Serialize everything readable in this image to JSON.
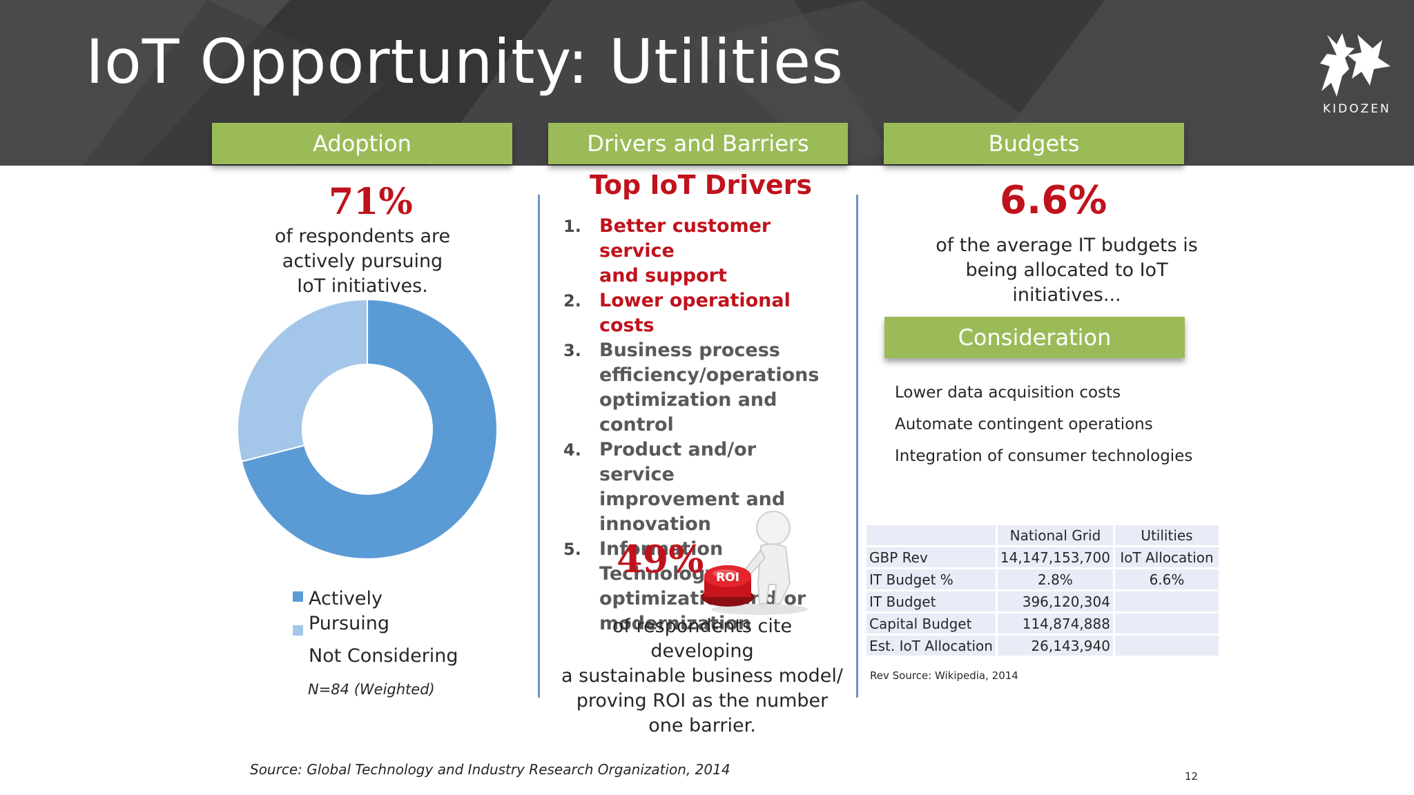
{
  "header": {
    "title": "IoT Opportunity: Utilities",
    "logo_text": "KIDOZEN"
  },
  "sections": {
    "adoption": "Adoption",
    "drivers": "Drivers and Barriers",
    "budgets": "Budgets",
    "consideration": "Consideration"
  },
  "adoption": {
    "percent": "71%",
    "desc_line1": "of respondents are",
    "desc_line2": "actively pursuing",
    "desc_line3": "IoT initiatives.",
    "legend": [
      {
        "label_line1": "Actively",
        "label_line2": "Pursuing",
        "color": "#5b9bd5"
      },
      {
        "label": "Not Considering",
        "color": "#a4c7e9"
      }
    ],
    "note": "N=84 (Weighted)"
  },
  "chart_data": {
    "type": "pie",
    "donut": true,
    "categories": [
      "Actively Pursuing",
      "Not Considering"
    ],
    "values": [
      71,
      29
    ],
    "colors": [
      "#5b9bd5",
      "#a4c7e9"
    ],
    "title": ""
  },
  "drivers": {
    "title": "Top IoT Drivers",
    "items": [
      {
        "num": "1.",
        "line1": "Better customer service",
        "line2": "and support",
        "line3": ""
      },
      {
        "num": "2.",
        "line1": "Lower operational costs",
        "line2": "",
        "line3": ""
      },
      {
        "num": "3.",
        "line1": "Business process",
        "line2": "efficiency/operations",
        "line3": "optimization and control"
      },
      {
        "num": "4.",
        "line1": "Product and/or service",
        "line2": "improvement and",
        "line3": "innovation"
      },
      {
        "num": "5.",
        "line1": "Information Technology",
        "line2": "optimization and/or",
        "line3": "modernization"
      }
    ],
    "barrier_percent": "49%",
    "roi_label": "ROI",
    "barrier_line1": "of respondents cite developing",
    "barrier_line2": "a sustainable business model/",
    "barrier_line3": "proving ROI as the number",
    "barrier_line4": "one barrier."
  },
  "budgets": {
    "percent": "6.6%",
    "desc_line1": "of the average IT budgets is",
    "desc_line2": "being allocated to IoT",
    "desc_line3": "initiatives..."
  },
  "consideration": {
    "items": [
      "Lower data acquisition costs",
      "Automate contingent operations",
      "Integration of consumer technologies"
    ]
  },
  "table": {
    "header": [
      "",
      "National Grid",
      "Utilities"
    ],
    "rows": [
      [
        "GBP Rev",
        "14,147,153,700",
        "IoT Allocation"
      ],
      [
        "IT Budget %",
        "2.8%",
        "6.6%"
      ],
      [
        "IT Budget",
        "396,120,304",
        ""
      ],
      [
        "Capital Budget",
        "114,874,888",
        ""
      ],
      [
        "Est. IoT Allocation",
        "26,143,940",
        ""
      ]
    ],
    "source": "Rev Source: Wikipedia, 2014"
  },
  "footer": {
    "source": "Source: Global Technology and Industry Research Organization, 2014",
    "page": "12"
  }
}
